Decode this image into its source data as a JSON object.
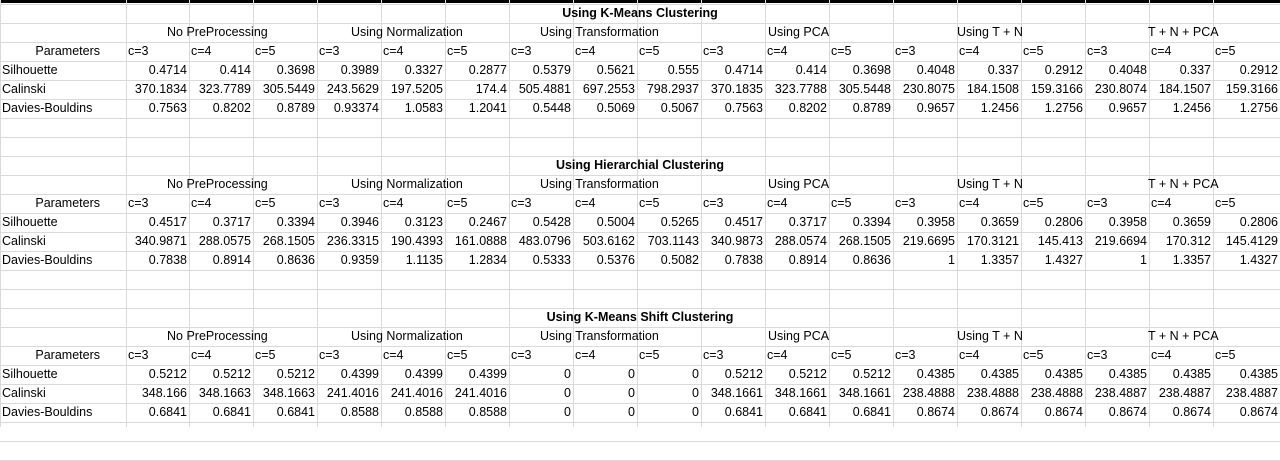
{
  "sheet": {
    "blocks": [
      {
        "title": "Using K-Means Clustering",
        "groups": [
          "No PreProcessing",
          "Using Normalization",
          "Using Transformation",
          "Using PCA",
          "Using T + N",
          "T + N + PCA"
        ],
        "params_label": "Parameters",
        "cluster_labels": [
          "c=3",
          "c=4",
          "c=5"
        ],
        "rows": [
          {
            "label": "Silhouette",
            "values": [
              "0.4714",
              "0.414",
              "0.3698",
              "0.3989",
              "0.3327",
              "0.2877",
              "0.5379",
              "0.5621",
              "0.555",
              "0.4714",
              "0.414",
              "0.3698",
              "0.4048",
              "0.337",
              "0.2912",
              "0.4048",
              "0.337",
              "0.2912"
            ]
          },
          {
            "label": "Calinski",
            "values": [
              "370.1834",
              "323.7789",
              "305.5449",
              "243.5629",
              "197.5205",
              "174.4",
              "505.4881",
              "697.2553",
              "798.2937",
              "370.1835",
              "323.7788",
              "305.5448",
              "230.8075",
              "184.1508",
              "159.3166",
              "230.8074",
              "184.1507",
              "159.3166"
            ]
          },
          {
            "label": "Davies-Bouldins",
            "values": [
              "0.7563",
              "0.8202",
              "0.8789",
              "0.93374",
              "1.0583",
              "1.2041",
              "0.5448",
              "0.5069",
              "0.5067",
              "0.7563",
              "0.8202",
              "0.8789",
              "0.9657",
              "1.2456",
              "1.2756",
              "0.9657",
              "1.2456",
              "1.2756"
            ]
          }
        ]
      },
      {
        "title": "Using Hierarchial Clustering",
        "groups": [
          "No PreProcessing",
          "Using Normalization",
          "Using Transformation",
          "Using PCA",
          "Using T + N",
          "T + N + PCA"
        ],
        "params_label": "Parameters",
        "cluster_labels": [
          "c=3",
          "c=4",
          "c=5"
        ],
        "rows": [
          {
            "label": "Silhouette",
            "values": [
              "0.4517",
              "0.3717",
              "0.3394",
              "0.3946",
              "0.3123",
              "0.2467",
              "0.5428",
              "0.5004",
              "0.5265",
              "0.4517",
              "0.3717",
              "0.3394",
              "0.3958",
              "0.3659",
              "0.2806",
              "0.3958",
              "0.3659",
              "0.2806"
            ]
          },
          {
            "label": "Calinski",
            "values": [
              "340.9871",
              "288.0575",
              "268.1505",
              "236.3315",
              "190.4393",
              "161.0888",
              "483.0796",
              "503.6162",
              "703.1143",
              "340.9873",
              "288.0574",
              "268.1505",
              "219.6695",
              "170.3121",
              "145.413",
              "219.6694",
              "170.312",
              "145.4129"
            ]
          },
          {
            "label": "Davies-Bouldins",
            "values": [
              "0.7838",
              "0.8914",
              "0.8636",
              "0.9359",
              "1.1135",
              "1.2834",
              "0.5333",
              "0.5376",
              "0.5082",
              "0.7838",
              "0.8914",
              "0.8636",
              "1",
              "1.3357",
              "1.4327",
              "1",
              "1.3357",
              "1.4327"
            ]
          }
        ]
      },
      {
        "title": "Using K-Means Shift Clustering",
        "groups": [
          "No PreProcessing",
          "Using Normalization",
          "Using Transformation",
          "Using PCA",
          "Using T + N",
          "T + N + PCA"
        ],
        "params_label": "Parameters",
        "cluster_labels": [
          "c=3",
          "c=4",
          "c=5"
        ],
        "rows": [
          {
            "label": "Silhouette",
            "values": [
              "0.5212",
              "0.5212",
              "0.5212",
              "0.4399",
              "0.4399",
              "0.4399",
              "0",
              "0",
              "0",
              "0.5212",
              "0.5212",
              "0.5212",
              "0.4385",
              "0.4385",
              "0.4385",
              "0.4385",
              "0.4385",
              "0.4385"
            ]
          },
          {
            "label": "Calinski",
            "values": [
              "348.166",
              "348.1663",
              "348.1663",
              "241.4016",
              "241.4016",
              "241.4016",
              "0",
              "0",
              "0",
              "348.1661",
              "348.1661",
              "348.1661",
              "238.4888",
              "238.4888",
              "238.4888",
              "238.4887",
              "238.4887",
              "238.4887"
            ]
          },
          {
            "label": "Davies-Bouldins",
            "values": [
              "0.6841",
              "0.6841",
              "0.6841",
              "0.8588",
              "0.8588",
              "0.8588",
              "0",
              "0",
              "0",
              "0.6841",
              "0.6841",
              "0.6841",
              "0.8674",
              "0.8674",
              "0.8674",
              "0.8674",
              "0.8674",
              "0.8674"
            ]
          }
        ]
      }
    ]
  }
}
